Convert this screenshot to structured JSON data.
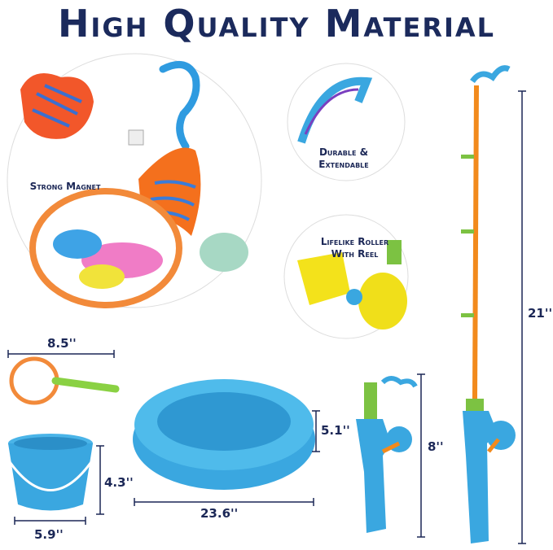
{
  "title": "High Quality Material",
  "features": {
    "magnet": "Strong Magnet",
    "durable_line1": "Durable &",
    "durable_line2": "Extendable",
    "roller_line1": "Lifelike Roller",
    "roller_line2": "With Reel"
  },
  "dimensions": {
    "net_width": "8.5''",
    "bucket_height": "4.3''",
    "bucket_width": "5.9''",
    "pool_height": "5.1''",
    "pool_width": "23.6''",
    "short_rod": "8''",
    "long_rod": "21''"
  },
  "colors": {
    "navy": "#1b2a5c",
    "blue": "#3aa7e0",
    "orange": "#f26a1f",
    "green": "#7cc242",
    "yellow": "#f2e21c",
    "pink": "#f07cc6"
  }
}
